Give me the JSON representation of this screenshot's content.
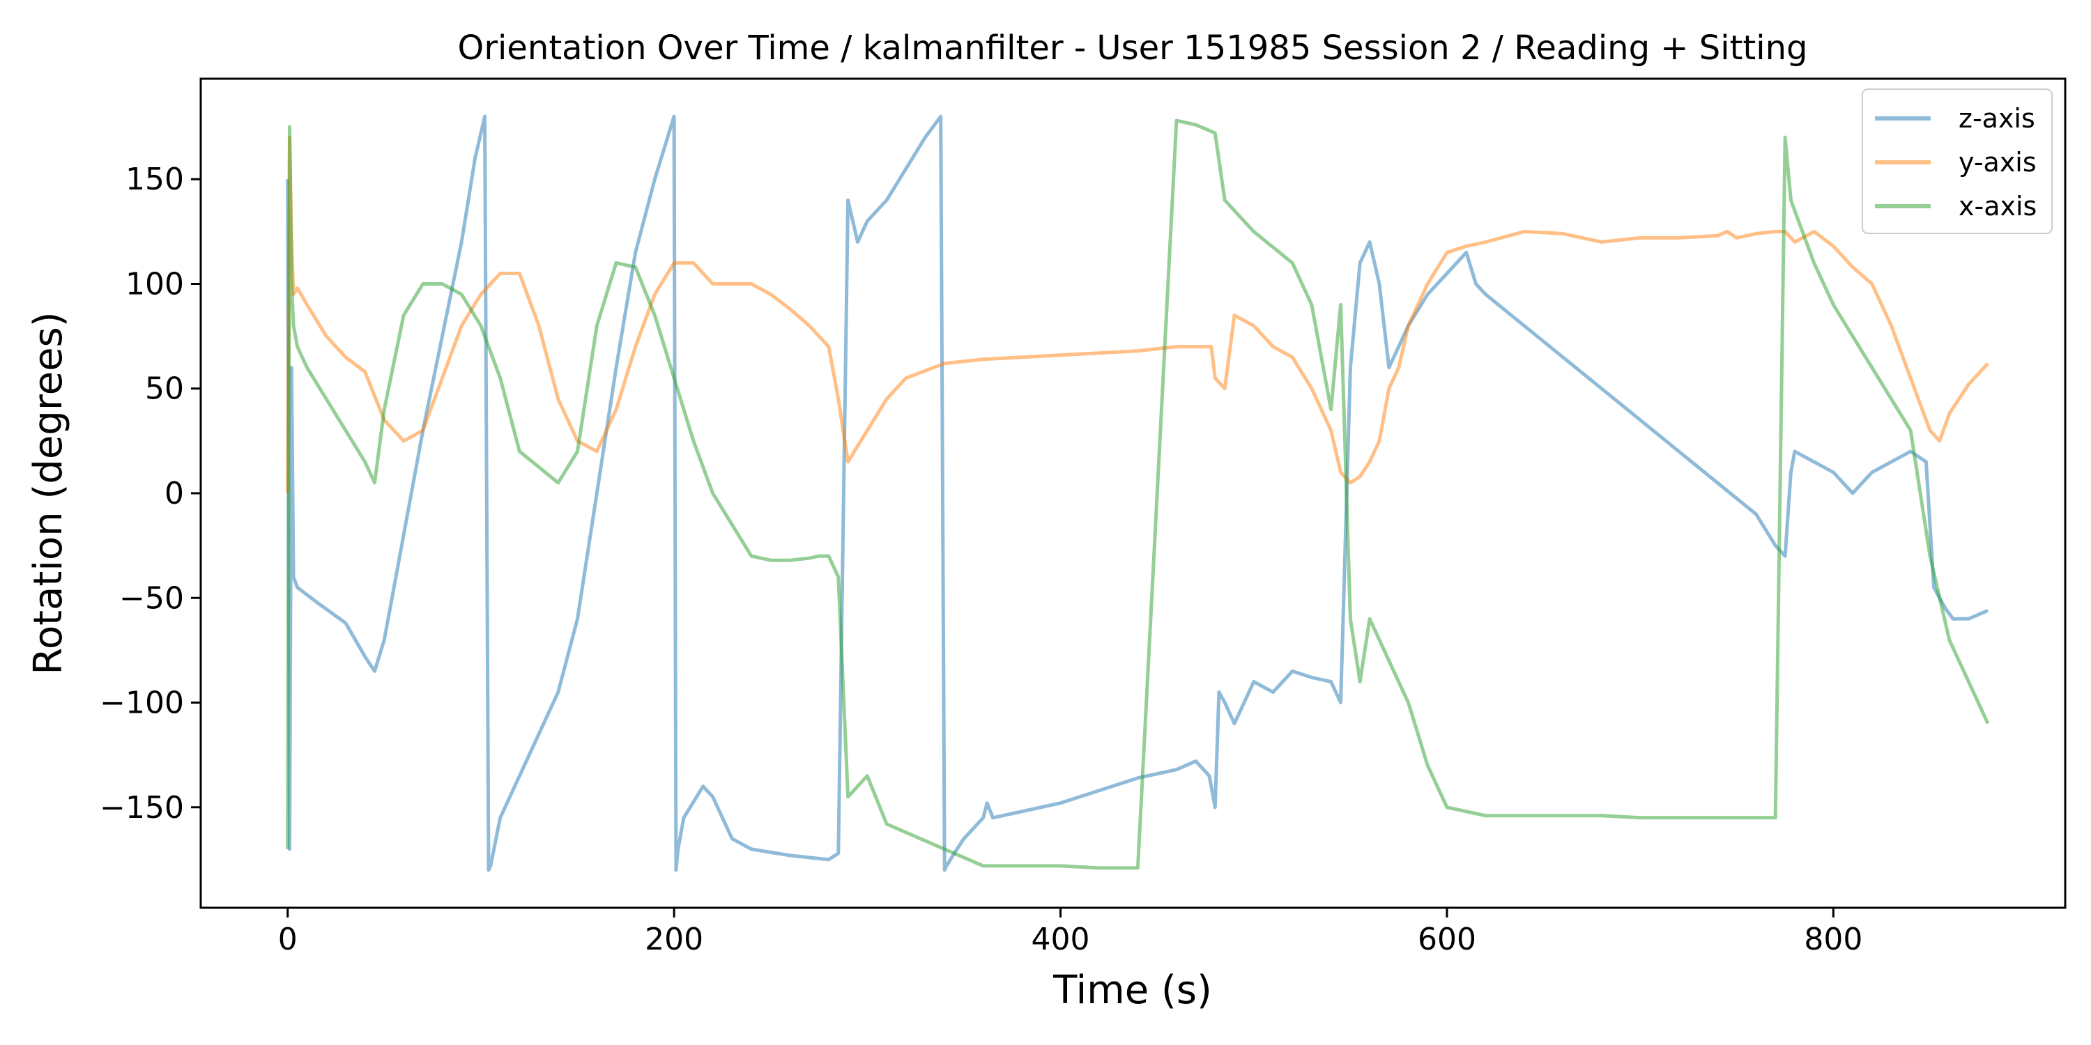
{
  "chart_data": {
    "type": "line",
    "title": "Orientation Over Time / kalmanfilter - User 151985 Session 2 / Reading + Sitting",
    "xlabel": "Time (s)",
    "ylabel": "Rotation (degrees)",
    "xlim": [
      -45,
      920
    ],
    "ylim": [
      -198,
      198
    ],
    "x_ticks": [
      0,
      200,
      400,
      600,
      800
    ],
    "x_tick_labels": [
      "0",
      "200",
      "400",
      "600",
      "800"
    ],
    "y_ticks": [
      -150,
      -100,
      -50,
      0,
      50,
      100,
      150
    ],
    "y_tick_labels": [
      "−150",
      "−100",
      "−50",
      "0",
      "50",
      "100",
      "150"
    ],
    "grid": false,
    "legend_position": "top-right",
    "series": [
      {
        "name": "z-axis",
        "color": "#1f77b4",
        "x": [
          0,
          1,
          2,
          3,
          5,
          15,
          30,
          40,
          45,
          50,
          60,
          70,
          80,
          90,
          97,
          102,
          104,
          105,
          110,
          120,
          140,
          150,
          160,
          170,
          180,
          190,
          200,
          201,
          202,
          205,
          215,
          220,
          230,
          240,
          260,
          280,
          285,
          290,
          295,
          300,
          310,
          320,
          330,
          338,
          340,
          341,
          345,
          350,
          360,
          362,
          365,
          380,
          400,
          420,
          440,
          460,
          470,
          477,
          480,
          482,
          485,
          490,
          500,
          510,
          520,
          530,
          540,
          545,
          550,
          555,
          560,
          565,
          570,
          580,
          590,
          600,
          610,
          615,
          620,
          640,
          660,
          680,
          700,
          720,
          740,
          760,
          770,
          775,
          778,
          780,
          790,
          800,
          810,
          820,
          830,
          840,
          848,
          852,
          858,
          862,
          870,
          880
        ],
        "y": [
          150,
          -170,
          60,
          -40,
          -45,
          -52,
          -62,
          -78,
          -85,
          -70,
          -20,
          30,
          75,
          120,
          160,
          180,
          -180,
          -178,
          -155,
          -135,
          -95,
          -60,
          0,
          60,
          115,
          150,
          180,
          -180,
          -170,
          -155,
          -140,
          -145,
          -165,
          -170,
          -173,
          -175,
          -172,
          140,
          120,
          130,
          140,
          155,
          170,
          180,
          -180,
          -178,
          -172,
          -165,
          -155,
          -148,
          -155,
          -152,
          -148,
          -142,
          -136,
          -132,
          -128,
          -135,
          -150,
          -95,
          -100,
          -110,
          -90,
          -95,
          -85,
          -88,
          -90,
          -100,
          60,
          110,
          120,
          100,
          60,
          80,
          95,
          105,
          115,
          100,
          95,
          80,
          65,
          50,
          35,
          20,
          5,
          -10,
          -25,
          -30,
          10,
          20,
          15,
          10,
          0,
          10,
          15,
          20,
          15,
          -45,
          -55,
          -60,
          -60,
          -56
        ]
      },
      {
        "name": "y-axis",
        "color": "#ff7f0e",
        "x": [
          0,
          1,
          2,
          3,
          5,
          10,
          20,
          30,
          40,
          50,
          60,
          70,
          80,
          90,
          100,
          110,
          120,
          130,
          140,
          150,
          160,
          170,
          180,
          190,
          200,
          210,
          220,
          230,
          240,
          250,
          260,
          270,
          280,
          285,
          290,
          300,
          310,
          320,
          340,
          360,
          380,
          400,
          420,
          440,
          460,
          470,
          478,
          480,
          485,
          490,
          500,
          510,
          520,
          530,
          540,
          545,
          550,
          555,
          560,
          565,
          570,
          575,
          580,
          590,
          600,
          610,
          620,
          640,
          660,
          680,
          700,
          720,
          740,
          745,
          750,
          760,
          770,
          775,
          780,
          790,
          800,
          810,
          820,
          830,
          840,
          850,
          855,
          860,
          870,
          880
        ],
        "y": [
          0,
          170,
          120,
          95,
          98,
          90,
          75,
          65,
          58,
          35,
          25,
          30,
          55,
          80,
          95,
          105,
          105,
          80,
          45,
          25,
          20,
          40,
          70,
          95,
          110,
          110,
          100,
          100,
          100,
          95,
          88,
          80,
          70,
          45,
          15,
          30,
          45,
          55,
          62,
          64,
          65,
          66,
          67,
          68,
          70,
          70,
          70,
          55,
          50,
          85,
          80,
          70,
          65,
          50,
          30,
          10,
          5,
          8,
          15,
          25,
          50,
          60,
          80,
          100,
          115,
          118,
          120,
          125,
          124,
          120,
          122,
          122,
          123,
          125,
          122,
          124,
          125,
          125,
          120,
          125,
          118,
          108,
          100,
          80,
          55,
          30,
          25,
          38,
          52,
          62
        ]
      },
      {
        "name": "x-axis",
        "color": "#2ca02c",
        "x": [
          0,
          1,
          2,
          3,
          5,
          10,
          20,
          30,
          40,
          45,
          50,
          60,
          70,
          80,
          90,
          100,
          110,
          120,
          140,
          150,
          160,
          170,
          180,
          190,
          200,
          210,
          220,
          230,
          240,
          250,
          260,
          270,
          275,
          280,
          285,
          290,
          300,
          310,
          320,
          340,
          360,
          380,
          400,
          420,
          440,
          460,
          470,
          480,
          485,
          490,
          500,
          520,
          530,
          540,
          545,
          550,
          555,
          560,
          570,
          580,
          590,
          600,
          610,
          620,
          640,
          660,
          680,
          700,
          720,
          740,
          760,
          770,
          775,
          778,
          780,
          790,
          800,
          820,
          840,
          850,
          860,
          870,
          880
        ],
        "y": [
          -170,
          175,
          100,
          80,
          70,
          60,
          45,
          30,
          15,
          5,
          40,
          85,
          100,
          100,
          95,
          80,
          55,
          20,
          5,
          20,
          80,
          110,
          108,
          85,
          55,
          25,
          0,
          -15,
          -30,
          -32,
          -32,
          -31,
          -30,
          -30,
          -40,
          -145,
          -135,
          -158,
          -162,
          -170,
          -178,
          -178,
          -178,
          -179,
          -179,
          178,
          176,
          172,
          140,
          135,
          125,
          110,
          90,
          40,
          90,
          -60,
          -90,
          -60,
          -80,
          -100,
          -130,
          -150,
          -152,
          -154,
          -154,
          -154,
          -154,
          -155,
          -155,
          -155,
          -155,
          -155,
          170,
          140,
          135,
          110,
          90,
          60,
          30,
          -30,
          -70,
          -90,
          -110
        ]
      }
    ]
  }
}
